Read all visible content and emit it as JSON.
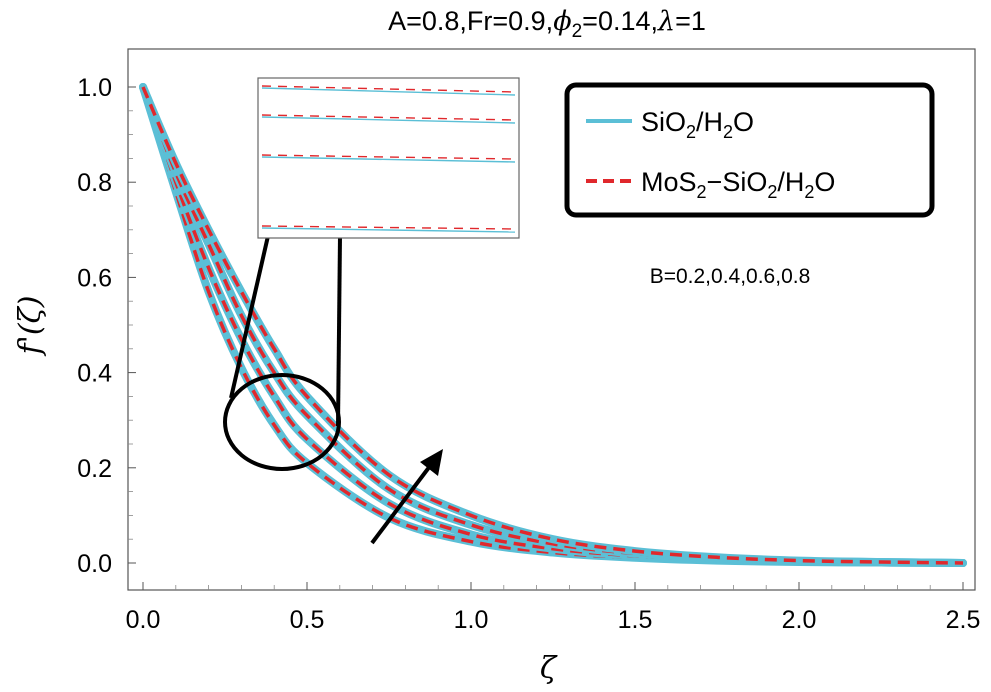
{
  "chart_data": {
    "type": "line",
    "title_parts": [
      "A=0.8,Fr=0.9,",
      "ϕ",
      "2",
      "=0.14,",
      "λ",
      "=1"
    ],
    "xlabel": "ζ",
    "ylabel": "f'(ζ)",
    "xlim": [
      0,
      2.5
    ],
    "ylim": [
      0,
      1.0
    ],
    "xticks": [
      "0.0",
      "0.5",
      "1.0",
      "1.5",
      "2.0",
      "2.5"
    ],
    "yticks": [
      "0.0",
      "0.2",
      "0.4",
      "0.6",
      "0.8",
      "1.0"
    ],
    "legend": [
      {
        "name": "SiO2/H2O",
        "parts": [
          "SiO",
          "2",
          "/H",
          "2",
          "O"
        ],
        "color": "#5bbfd6",
        "style": "solid"
      },
      {
        "name": "MoS2-SiO2/H2O",
        "parts": [
          "MoS",
          "2",
          "−SiO",
          "2",
          "/H",
          "2",
          "O"
        ],
        "color": "#e0282c",
        "style": "dashed"
      }
    ],
    "parameter": "B",
    "parameter_values": [
      0.2,
      0.4,
      0.6,
      0.8
    ],
    "annotation": "B=0.2,0.4,0.6,0.8",
    "series": [
      {
        "name": "B=0.2",
        "x": [
          0,
          0.1,
          0.2,
          0.3,
          0.4,
          0.5,
          0.75,
          1.0,
          1.25,
          1.5,
          1.75,
          2.0,
          2.25,
          2.5
        ],
        "values": [
          1.0,
          0.78,
          0.57,
          0.41,
          0.29,
          0.21,
          0.095,
          0.045,
          0.022,
          0.011,
          0.005,
          0.002,
          0.001,
          0.0
        ]
      },
      {
        "name": "B=0.4",
        "x": [
          0,
          0.1,
          0.2,
          0.3,
          0.4,
          0.5,
          0.75,
          1.0,
          1.25,
          1.5,
          1.75,
          2.0,
          2.25,
          2.5
        ],
        "values": [
          1.0,
          0.8,
          0.62,
          0.47,
          0.35,
          0.26,
          0.125,
          0.06,
          0.03,
          0.015,
          0.007,
          0.003,
          0.001,
          0.0
        ]
      },
      {
        "name": "B=0.6",
        "x": [
          0,
          0.1,
          0.2,
          0.3,
          0.4,
          0.5,
          0.75,
          1.0,
          1.25,
          1.5,
          1.75,
          2.0,
          2.25,
          2.5
        ],
        "values": [
          1.0,
          0.82,
          0.67,
          0.52,
          0.4,
          0.31,
          0.155,
          0.08,
          0.04,
          0.02,
          0.01,
          0.004,
          0.002,
          0.0
        ]
      },
      {
        "name": "B=0.8",
        "x": [
          0,
          0.1,
          0.2,
          0.3,
          0.4,
          0.5,
          0.75,
          1.0,
          1.25,
          1.5,
          1.75,
          2.0,
          2.25,
          2.5
        ],
        "values": [
          1.0,
          0.84,
          0.7,
          0.57,
          0.45,
          0.35,
          0.185,
          0.1,
          0.05,
          0.025,
          0.012,
          0.005,
          0.002,
          0.0
        ]
      }
    ]
  }
}
